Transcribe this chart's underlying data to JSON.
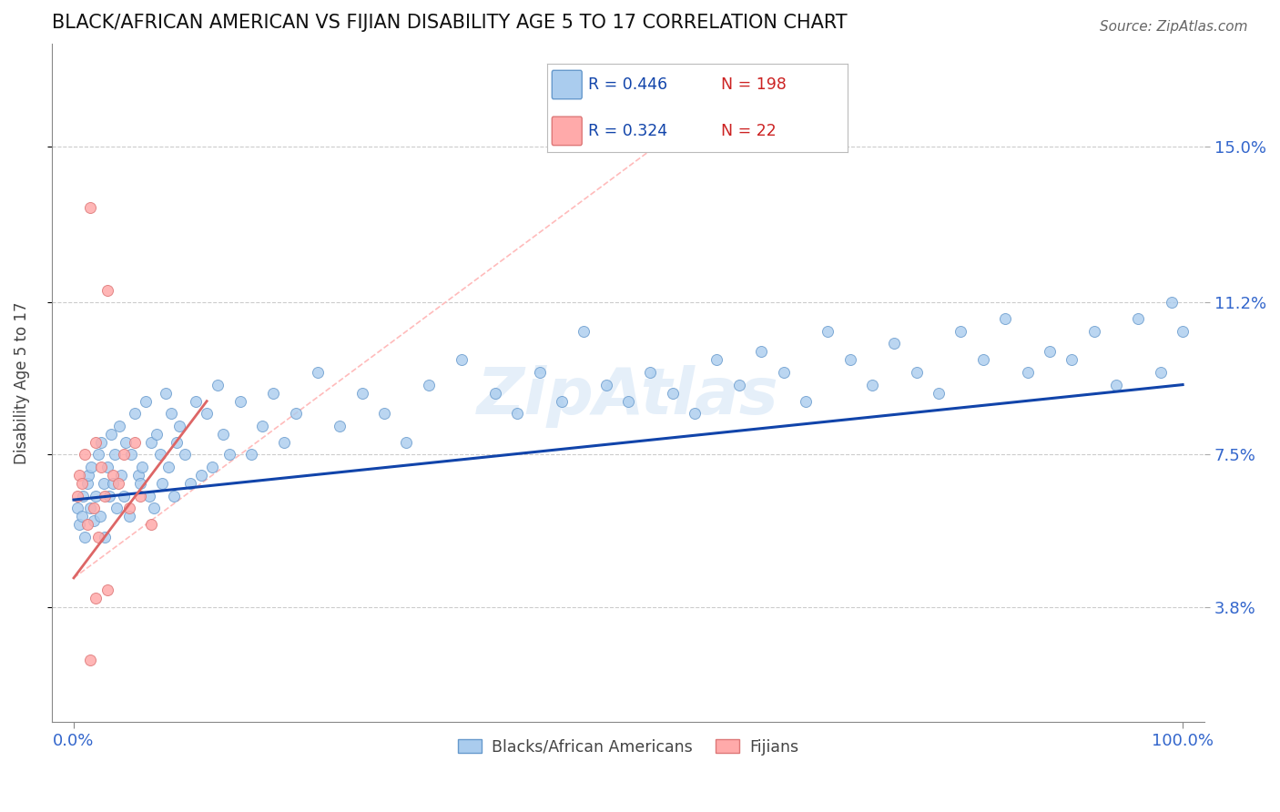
{
  "title": "BLACK/AFRICAN AMERICAN VS FIJIAN DISABILITY AGE 5 TO 17 CORRELATION CHART",
  "source": "Source: ZipAtlas.com",
  "ylabel": "Disability Age 5 to 17",
  "xlim": [
    -2.0,
    102.0
  ],
  "ylim": [
    1.0,
    17.5
  ],
  "yticks": [
    3.8,
    7.5,
    11.2,
    15.0
  ],
  "ytick_labels": [
    "3.8%",
    "7.5%",
    "11.2%",
    "15.0%"
  ],
  "xticks": [
    0.0,
    100.0
  ],
  "xtick_labels": [
    "0.0%",
    "100.0%"
  ],
  "title_color": "#111111",
  "title_fontsize": 15,
  "tick_color": "#3366cc",
  "grid_color": "#cccccc",
  "background_color": "#ffffff",
  "legend_R1": "0.446",
  "legend_N1": "198",
  "legend_R2": "0.324",
  "legend_N2": "22",
  "blue_color": "#aaccee",
  "blue_edge": "#6699cc",
  "blue_line_color": "#1144aa",
  "pink_color": "#ffaaaa",
  "pink_edge": "#dd7777",
  "pink_line_color": "#dd6666",
  "blue_scatter_x": [
    0.3,
    0.5,
    0.7,
    0.8,
    1.0,
    1.2,
    1.3,
    1.5,
    1.6,
    1.8,
    2.0,
    2.2,
    2.4,
    2.5,
    2.7,
    2.8,
    3.0,
    3.2,
    3.4,
    3.5,
    3.7,
    3.9,
    4.1,
    4.3,
    4.5,
    4.7,
    5.0,
    5.2,
    5.5,
    5.8,
    6.0,
    6.2,
    6.5,
    6.8,
    7.0,
    7.2,
    7.5,
    7.8,
    8.0,
    8.3,
    8.5,
    8.8,
    9.0,
    9.3,
    9.5,
    10.0,
    10.5,
    11.0,
    11.5,
    12.0,
    12.5,
    13.0,
    13.5,
    14.0,
    15.0,
    16.0,
    17.0,
    18.0,
    19.0,
    20.0,
    22.0,
    24.0,
    26.0,
    28.0,
    30.0,
    32.0,
    35.0,
    38.0,
    40.0,
    42.0,
    44.0,
    46.0,
    48.0,
    50.0,
    52.0,
    54.0,
    56.0,
    58.0,
    60.0,
    62.0,
    64.0,
    66.0,
    68.0,
    70.0,
    72.0,
    74.0,
    76.0,
    78.0,
    80.0,
    82.0,
    84.0,
    86.0,
    88.0,
    90.0,
    92.0,
    94.0,
    96.0,
    98.0,
    99.0,
    100.0
  ],
  "blue_scatter_y": [
    6.2,
    5.8,
    6.0,
    6.5,
    5.5,
    6.8,
    7.0,
    6.2,
    7.2,
    5.9,
    6.5,
    7.5,
    6.0,
    7.8,
    6.8,
    5.5,
    7.2,
    6.5,
    8.0,
    6.8,
    7.5,
    6.2,
    8.2,
    7.0,
    6.5,
    7.8,
    6.0,
    7.5,
    8.5,
    7.0,
    6.8,
    7.2,
    8.8,
    6.5,
    7.8,
    6.2,
    8.0,
    7.5,
    6.8,
    9.0,
    7.2,
    8.5,
    6.5,
    7.8,
    8.2,
    7.5,
    6.8,
    8.8,
    7.0,
    8.5,
    7.2,
    9.2,
    8.0,
    7.5,
    8.8,
    7.5,
    8.2,
    9.0,
    7.8,
    8.5,
    9.5,
    8.2,
    9.0,
    8.5,
    7.8,
    9.2,
    9.8,
    9.0,
    8.5,
    9.5,
    8.8,
    10.5,
    9.2,
    8.8,
    9.5,
    9.0,
    8.5,
    9.8,
    9.2,
    10.0,
    9.5,
    8.8,
    10.5,
    9.8,
    9.2,
    10.2,
    9.5,
    9.0,
    10.5,
    9.8,
    10.8,
    9.5,
    10.0,
    9.8,
    10.5,
    9.2,
    10.8,
    9.5,
    11.2,
    10.5
  ],
  "pink_scatter_x": [
    0.3,
    0.5,
    0.7,
    1.0,
    1.2,
    1.5,
    1.8,
    2.0,
    2.2,
    2.5,
    2.8,
    3.0,
    3.5,
    4.0,
    4.5,
    5.0,
    5.5,
    6.0,
    7.0,
    2.0,
    3.0,
    1.5
  ],
  "pink_scatter_y": [
    6.5,
    7.0,
    6.8,
    7.5,
    5.8,
    13.5,
    6.2,
    7.8,
    5.5,
    7.2,
    6.5,
    11.5,
    7.0,
    6.8,
    7.5,
    6.2,
    7.8,
    6.5,
    5.8,
    4.0,
    4.2,
    2.5
  ],
  "pink_line_x0": 0.0,
  "pink_line_x1": 12.0,
  "blue_line_x0": 0.0,
  "blue_line_x1": 100.0,
  "blue_line_y0": 6.4,
  "blue_line_y1": 9.2,
  "pink_line_y0": 4.5,
  "pink_line_y1": 8.8,
  "diag_line_x": [
    0.0,
    55.0
  ],
  "diag_line_y": [
    4.5,
    15.5
  ],
  "watermark_text": "ZipAtlas",
  "marker_size": 75
}
